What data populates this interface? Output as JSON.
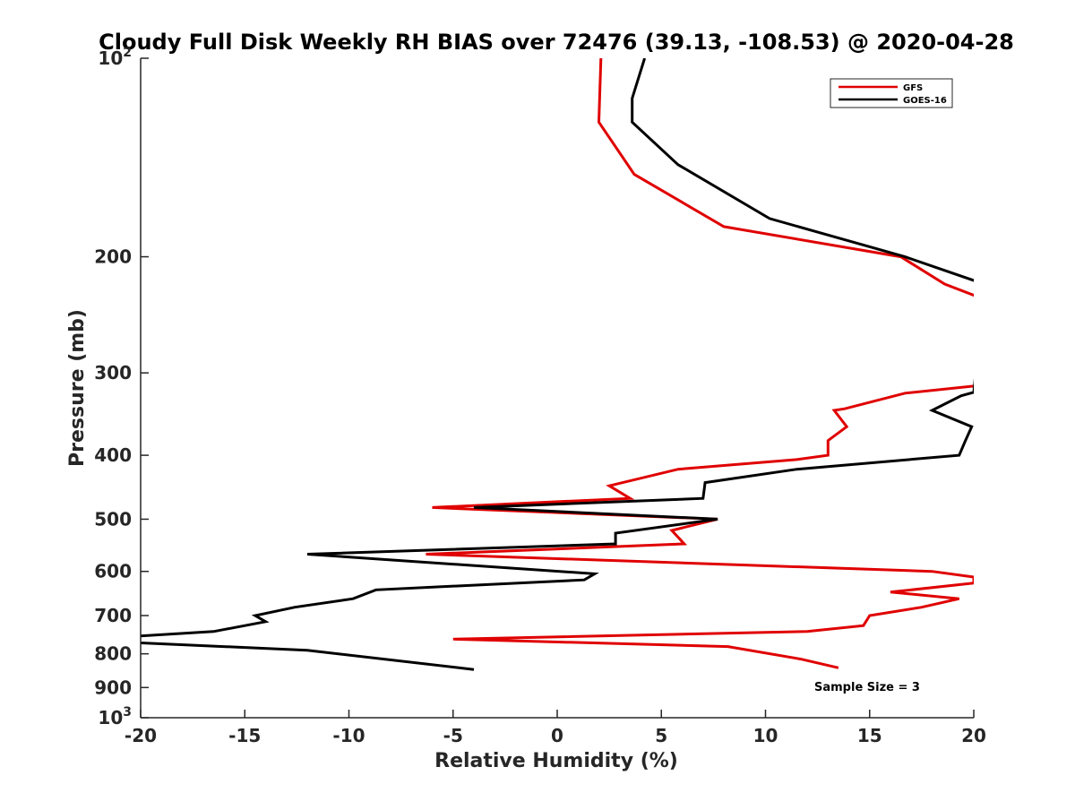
{
  "chart_data": {
    "type": "line",
    "title": "Cloudy Full Disk Weekly RH BIAS over 72476 (39.13, -108.53) @ 2020-04-28",
    "xlabel": "Relative Humidity (%)",
    "ylabel": "Pressure (mb)",
    "xlim": [
      -20,
      20
    ],
    "ylim": [
      100,
      1000
    ],
    "yscale": "log",
    "y_reversed": true,
    "grid": false,
    "legend_position": "top-right",
    "x_ticks": [
      -20,
      -15,
      -10,
      -5,
      0,
      5,
      10,
      15,
      20
    ],
    "x_tick_labels": [
      "-20",
      "-15",
      "-10",
      "-5",
      "0",
      "5",
      "10",
      "15",
      "20"
    ],
    "y_ticks": [
      {
        "value": 100,
        "base": "10",
        "exp": "2"
      },
      {
        "value": 200,
        "label": "200"
      },
      {
        "value": 300,
        "label": "300"
      },
      {
        "value": 400,
        "label": "400"
      },
      {
        "value": 500,
        "label": "500"
      },
      {
        "value": 600,
        "label": "600"
      },
      {
        "value": 700,
        "label": "700"
      },
      {
        "value": 800,
        "label": "800"
      },
      {
        "value": 900,
        "label": "900"
      },
      {
        "value": 1000,
        "base": "10",
        "exp": "3"
      }
    ],
    "annotation": "Sample Size = 3",
    "series": [
      {
        "name": "GFS",
        "color": "#e00000",
        "points": [
          [
            2.1,
            100
          ],
          [
            2.0,
            125
          ],
          [
            3.7,
            150
          ],
          [
            8.0,
            180
          ],
          [
            16.5,
            200
          ],
          [
            18.6,
            220
          ],
          [
            20.5,
            232
          ],
          [
            20.5,
            313
          ],
          [
            16.7,
            322
          ],
          [
            13.8,
            340
          ],
          [
            13.3,
            342
          ],
          [
            13.9,
            362
          ],
          [
            13.0,
            380
          ],
          [
            13.0,
            400
          ],
          [
            11.5,
            406
          ],
          [
            5.8,
            420
          ],
          [
            2.5,
            445
          ],
          [
            3.5,
            465
          ],
          [
            -6.0,
            480
          ],
          [
            7.7,
            500
          ],
          [
            5.5,
            520
          ],
          [
            6.1,
            545
          ],
          [
            -6.3,
            565
          ],
          [
            18.0,
            600
          ],
          [
            20.0,
            612
          ],
          [
            20.0,
            625
          ],
          [
            16.0,
            645
          ],
          [
            19.3,
            660
          ],
          [
            17.5,
            680
          ],
          [
            15.0,
            700
          ],
          [
            14.7,
            725
          ],
          [
            12.0,
            740
          ],
          [
            -5.0,
            760
          ],
          [
            8.2,
            780
          ],
          [
            11.7,
            815
          ],
          [
            13.5,
            840
          ]
        ]
      },
      {
        "name": "GOES-16",
        "color": "#000000",
        "points": [
          [
            4.2,
            100
          ],
          [
            3.6,
            115
          ],
          [
            3.6,
            125
          ],
          [
            5.8,
            145
          ],
          [
            10.2,
            175
          ],
          [
            16.7,
            200
          ],
          [
            20.5,
            220
          ],
          [
            20.0,
            321
          ],
          [
            19.4,
            325
          ],
          [
            18.0,
            342
          ],
          [
            19.9,
            362
          ],
          [
            19.6,
            380
          ],
          [
            19.3,
            400
          ],
          [
            11.5,
            420
          ],
          [
            7.1,
            440
          ],
          [
            7.0,
            465
          ],
          [
            -4.0,
            480
          ],
          [
            7.7,
            500
          ],
          [
            2.8,
            525
          ],
          [
            2.8,
            545
          ],
          [
            -12.0,
            565
          ],
          [
            1.8,
            605
          ],
          [
            1.3,
            618
          ],
          [
            -8.7,
            640
          ],
          [
            -9.8,
            660
          ],
          [
            -12.6,
            680
          ],
          [
            -14.5,
            700
          ],
          [
            -14.0,
            715
          ],
          [
            -16.5,
            740
          ],
          [
            -21.0,
            755
          ],
          [
            -20.0,
            770
          ],
          [
            -12.0,
            790
          ],
          [
            -4.0,
            845
          ]
        ]
      }
    ]
  }
}
